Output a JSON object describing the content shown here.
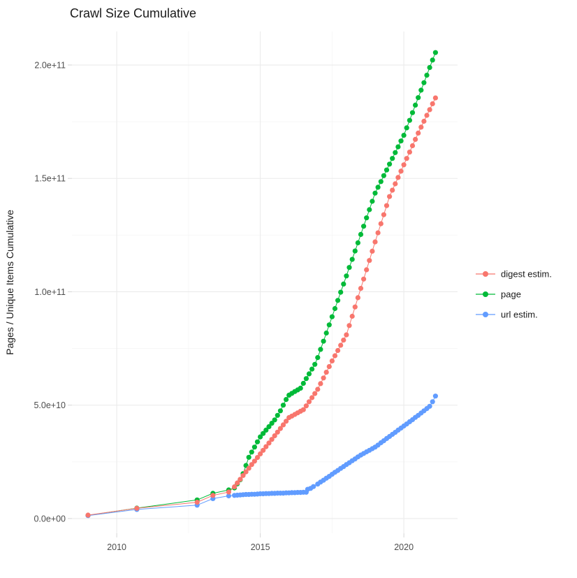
{
  "chart_data": {
    "type": "scatter",
    "title": "Crawl Size Cumulative",
    "xlabel": "",
    "ylabel": "Pages / Unique Items Cumulative",
    "xlim": [
      2008.44,
      2021.87
    ],
    "ylim": [
      -6500000000.0,
      214800000000.0
    ],
    "grid": true,
    "legend_position": "right",
    "x_ticks": [
      {
        "value": 2010,
        "label": "2010"
      },
      {
        "value": 2015,
        "label": "2015"
      },
      {
        "value": 2020,
        "label": "2020"
      }
    ],
    "x_minor": [
      2012.5,
      2017.5
    ],
    "y_ticks": [
      {
        "value": 0,
        "label": "0.0e+00"
      },
      {
        "value": 50000000000.0,
        "label": "5.0e+10"
      },
      {
        "value": 100000000000.0,
        "label": "1.0e+11"
      },
      {
        "value": 150000000000.0,
        "label": "1.5e+11"
      },
      {
        "value": 200000000000.0,
        "label": "2.0e+11"
      }
    ],
    "y_minor": [
      25000000000.0,
      75000000000.0,
      125000000000.0,
      175000000000.0
    ],
    "series": [
      {
        "name": "digest estim.",
        "color": "#F8766D",
        "points": [
          [
            2009.0,
            1500000000.0
          ],
          [
            2010.7,
            4500000000.0
          ],
          [
            2012.8,
            7200000000.0
          ],
          [
            2013.35,
            10200000000.0
          ],
          [
            2013.9,
            11700000000.0
          ],
          [
            2014.1,
            14000000000.0
          ],
          [
            2014.2,
            15700000000.0
          ],
          [
            2014.3,
            17300000000.0
          ],
          [
            2014.4,
            19000000000.0
          ],
          [
            2014.5,
            20600000000.0
          ],
          [
            2014.6,
            22200000000.0
          ],
          [
            2014.7,
            23800000000.0
          ],
          [
            2014.8,
            25300000000.0
          ],
          [
            2014.9,
            26900000000.0
          ],
          [
            2015.0,
            28500000000.0
          ],
          [
            2015.1,
            30100000000.0
          ],
          [
            2015.2,
            31700000000.0
          ],
          [
            2015.3,
            33300000000.0
          ],
          [
            2015.4,
            34900000000.0
          ],
          [
            2015.5,
            36500000000.0
          ],
          [
            2015.6,
            38100000000.0
          ],
          [
            2015.7,
            39700000000.0
          ],
          [
            2015.8,
            41300000000.0
          ],
          [
            2015.9,
            42900000000.0
          ],
          [
            2016.0,
            44500000000.0
          ],
          [
            2016.1,
            45200000000.0
          ],
          [
            2016.2,
            45900000000.0
          ],
          [
            2016.3,
            46600000000.0
          ],
          [
            2016.4,
            47300000000.0
          ],
          [
            2016.5,
            48000000000.0
          ],
          [
            2016.6,
            49700000000.0
          ],
          [
            2016.7,
            51500000000.0
          ],
          [
            2016.8,
            53300000000.0
          ],
          [
            2016.9,
            55100000000.0
          ],
          [
            2017.0,
            57000000000.0
          ],
          [
            2017.1,
            59500000000.0
          ],
          [
            2017.2,
            62000000000.0
          ],
          [
            2017.3,
            64500000000.0
          ],
          [
            2017.4,
            67000000000.0
          ],
          [
            2017.5,
            69500000000.0
          ],
          [
            2017.6,
            71800000000.0
          ],
          [
            2017.7,
            74100000000.0
          ],
          [
            2017.8,
            76400000000.0
          ],
          [
            2017.9,
            78700000000.0
          ],
          [
            2018.0,
            81000000000.0
          ],
          [
            2018.1,
            85100000000.0
          ],
          [
            2018.2,
            89200000000.0
          ],
          [
            2018.3,
            93300000000.0
          ],
          [
            2018.4,
            97400000000.0
          ],
          [
            2018.5,
            101500000000.0
          ],
          [
            2018.6,
            105600000000.0
          ],
          [
            2018.7,
            109700000000.0
          ],
          [
            2018.8,
            113800000000.0
          ],
          [
            2018.9,
            117900000000.0
          ],
          [
            2019.0,
            122000000000.0
          ],
          [
            2019.1,
            126000000000.0
          ],
          [
            2019.2,
            130000000000.0
          ],
          [
            2019.3,
            134000000000.0
          ],
          [
            2019.4,
            138000000000.0
          ],
          [
            2019.5,
            142000000000.0
          ],
          [
            2019.6,
            144800000000.0
          ],
          [
            2019.7,
            147600000000.0
          ],
          [
            2019.8,
            150400000000.0
          ],
          [
            2019.9,
            153200000000.0
          ],
          [
            2020.0,
            156000000000.0
          ],
          [
            2020.1,
            158800000000.0
          ],
          [
            2020.2,
            161600000000.0
          ],
          [
            2020.3,
            164400000000.0
          ],
          [
            2020.4,
            167200000000.0
          ],
          [
            2020.5,
            170000000000.0
          ],
          [
            2020.6,
            172600000000.0
          ],
          [
            2020.7,
            175200000000.0
          ],
          [
            2020.8,
            177800000000.0
          ],
          [
            2020.9,
            180300000000.0
          ],
          [
            2021.0,
            182900000000.0
          ],
          [
            2021.1,
            185500000000.0
          ]
        ]
      },
      {
        "name": "page",
        "color": "#00BA38",
        "points": [
          [
            2009.0,
            1400000000.0
          ],
          [
            2010.7,
            4600000000.0
          ],
          [
            2012.8,
            8200000000.0
          ],
          [
            2013.35,
            11100000000.0
          ],
          [
            2013.9,
            12600000000.0
          ],
          [
            2014.1,
            13500000000.0
          ],
          [
            2014.2,
            15300000000.0
          ],
          [
            2014.3,
            17100000000.0
          ],
          [
            2014.4,
            19800000000.0
          ],
          [
            2014.5,
            23400000000.0
          ],
          [
            2014.6,
            27000000000.0
          ],
          [
            2014.7,
            29300000000.0
          ],
          [
            2014.8,
            31500000000.0
          ],
          [
            2014.9,
            33800000000.0
          ],
          [
            2015.0,
            36000000000.0
          ],
          [
            2015.1,
            37500000000.0
          ],
          [
            2015.2,
            39000000000.0
          ],
          [
            2015.3,
            40500000000.0
          ],
          [
            2015.4,
            42000000000.0
          ],
          [
            2015.5,
            43500000000.0
          ],
          [
            2015.6,
            45500000000.0
          ],
          [
            2015.7,
            47500000000.0
          ],
          [
            2015.8,
            50000000000.0
          ],
          [
            2015.9,
            52500000000.0
          ],
          [
            2016.0,
            54400000000.0
          ],
          [
            2016.1,
            55200000000.0
          ],
          [
            2016.2,
            56000000000.0
          ],
          [
            2016.3,
            56700000000.0
          ],
          [
            2016.4,
            57500000000.0
          ],
          [
            2016.5,
            59600000000.0
          ],
          [
            2016.6,
            61700000000.0
          ],
          [
            2016.7,
            63800000000.0
          ],
          [
            2016.8,
            65900000000.0
          ],
          [
            2016.9,
            68000000000.0
          ],
          [
            2017.0,
            71000000000.0
          ],
          [
            2017.1,
            74600000000.0
          ],
          [
            2017.2,
            78200000000.0
          ],
          [
            2017.3,
            81800000000.0
          ],
          [
            2017.4,
            85400000000.0
          ],
          [
            2017.5,
            89000000000.0
          ],
          [
            2017.6,
            92600000000.0
          ],
          [
            2017.7,
            96200000000.0
          ],
          [
            2017.8,
            99800000000.0
          ],
          [
            2017.9,
            103400000000.0
          ],
          [
            2018.0,
            107000000000.0
          ],
          [
            2018.1,
            110700000000.0
          ],
          [
            2018.2,
            114300000000.0
          ],
          [
            2018.3,
            118000000000.0
          ],
          [
            2018.4,
            121600000000.0
          ],
          [
            2018.5,
            125300000000.0
          ],
          [
            2018.6,
            128900000000.0
          ],
          [
            2018.7,
            132600000000.0
          ],
          [
            2018.8,
            136200000000.0
          ],
          [
            2018.9,
            139900000000.0
          ],
          [
            2019.0,
            143500000000.0
          ],
          [
            2019.1,
            146100000000.0
          ],
          [
            2019.2,
            148600000000.0
          ],
          [
            2019.3,
            151200000000.0
          ],
          [
            2019.4,
            153700000000.0
          ],
          [
            2019.5,
            156300000000.0
          ],
          [
            2019.6,
            158800000000.0
          ],
          [
            2019.7,
            161400000000.0
          ],
          [
            2019.8,
            163900000000.0
          ],
          [
            2019.9,
            166500000000.0
          ],
          [
            2020.0,
            169000000000.0
          ],
          [
            2020.1,
            172300000000.0
          ],
          [
            2020.2,
            175600000000.0
          ],
          [
            2020.3,
            179000000000.0
          ],
          [
            2020.4,
            182300000000.0
          ],
          [
            2020.5,
            185600000000.0
          ],
          [
            2020.6,
            188900000000.0
          ],
          [
            2020.7,
            192200000000.0
          ],
          [
            2020.8,
            195500000000.0
          ],
          [
            2020.9,
            198900000000.0
          ],
          [
            2021.0,
            202200000000.0
          ],
          [
            2021.1,
            205500000000.0
          ]
        ]
      },
      {
        "name": "url estim.",
        "color": "#619CFF",
        "points": [
          [
            2009.0,
            1300000000.0
          ],
          [
            2010.7,
            4000000000.0
          ],
          [
            2012.8,
            5900000000.0
          ],
          [
            2013.35,
            8800000000.0
          ],
          [
            2013.9,
            10000000000.0
          ],
          [
            2014.1,
            10200000000.0
          ],
          [
            2014.2,
            10300000000.0
          ],
          [
            2014.3,
            10400000000.0
          ],
          [
            2014.4,
            10500000000.0
          ],
          [
            2014.5,
            10600000000.0
          ],
          [
            2014.6,
            10600000000.0
          ],
          [
            2014.7,
            10700000000.0
          ],
          [
            2014.8,
            10700000000.0
          ],
          [
            2014.9,
            10800000000.0
          ],
          [
            2015.0,
            10900000000.0
          ],
          [
            2015.1,
            10900000000.0
          ],
          [
            2015.2,
            11000000000.0
          ],
          [
            2015.3,
            11000000000.0
          ],
          [
            2015.4,
            11100000000.0
          ],
          [
            2015.5,
            11100000000.0
          ],
          [
            2015.6,
            11200000000.0
          ],
          [
            2015.7,
            11200000000.0
          ],
          [
            2015.8,
            11200000000.0
          ],
          [
            2015.9,
            11300000000.0
          ],
          [
            2016.0,
            11300000000.0
          ],
          [
            2016.1,
            11400000000.0
          ],
          [
            2016.2,
            11400000000.0
          ],
          [
            2016.3,
            11500000000.0
          ],
          [
            2016.4,
            11500000000.0
          ],
          [
            2016.5,
            11600000000.0
          ],
          [
            2016.6,
            11600000000.0
          ],
          [
            2016.65,
            12900000000.0
          ],
          [
            2016.75,
            13300000000.0
          ],
          [
            2016.85,
            14100000000.0
          ],
          [
            2017.0,
            15200000000.0
          ],
          [
            2017.1,
            16100000000.0
          ],
          [
            2017.2,
            16900000000.0
          ],
          [
            2017.3,
            17800000000.0
          ],
          [
            2017.4,
            18600000000.0
          ],
          [
            2017.5,
            19500000000.0
          ],
          [
            2017.6,
            20400000000.0
          ],
          [
            2017.7,
            21200000000.0
          ],
          [
            2017.8,
            22100000000.0
          ],
          [
            2017.9,
            22900000000.0
          ],
          [
            2018.0,
            23800000000.0
          ],
          [
            2018.1,
            24600000000.0
          ],
          [
            2018.2,
            25500000000.0
          ],
          [
            2018.3,
            26300000000.0
          ],
          [
            2018.4,
            27200000000.0
          ],
          [
            2018.5,
            28000000000.0
          ],
          [
            2018.6,
            28700000000.0
          ],
          [
            2018.7,
            29400000000.0
          ],
          [
            2018.8,
            30100000000.0
          ],
          [
            2018.9,
            30800000000.0
          ],
          [
            2019.0,
            31500000000.0
          ],
          [
            2019.1,
            32400000000.0
          ],
          [
            2019.2,
            33400000000.0
          ],
          [
            2019.3,
            34300000000.0
          ],
          [
            2019.4,
            35300000000.0
          ],
          [
            2019.5,
            36200000000.0
          ],
          [
            2019.6,
            37100000000.0
          ],
          [
            2019.7,
            38000000000.0
          ],
          [
            2019.8,
            39000000000.0
          ],
          [
            2019.9,
            39900000000.0
          ],
          [
            2020.0,
            40800000000.0
          ],
          [
            2020.1,
            41700000000.0
          ],
          [
            2020.2,
            42700000000.0
          ],
          [
            2020.3,
            43600000000.0
          ],
          [
            2020.4,
            44600000000.0
          ],
          [
            2020.5,
            45500000000.0
          ],
          [
            2020.6,
            46500000000.0
          ],
          [
            2020.7,
            47500000000.0
          ],
          [
            2020.8,
            48500000000.0
          ],
          [
            2020.9,
            49500000000.0
          ],
          [
            2021.0,
            51500000000.0
          ],
          [
            2021.1,
            54000000000.0
          ]
        ]
      }
    ]
  },
  "colors": {
    "digest_estim": "#F8766D",
    "page": "#00BA38",
    "url_estim": "#619CFF",
    "grid_major": "#ebebeb",
    "grid_minor": "#f5f5f5",
    "tick_text": "#4d4d4d",
    "title_text": "#1a1a1a"
  }
}
